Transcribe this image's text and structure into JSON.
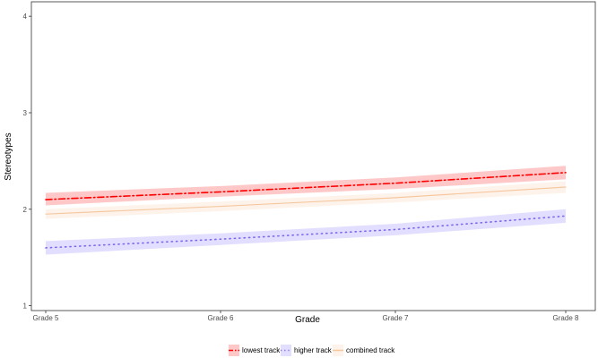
{
  "chart_data": {
    "type": "line",
    "title": "",
    "xlabel": "Grade",
    "ylabel": "Stereotypes",
    "categories": [
      "Grade 5",
      "Grade 6",
      "Grade 7",
      "Grade 8"
    ],
    "ylim": [
      0.95,
      4.15
    ],
    "yticks": [
      1,
      2,
      3,
      4
    ],
    "grid": false,
    "legend_position": "bottom",
    "series": [
      {
        "name": "lowest track",
        "color": "#ff0000",
        "band_color": "#ff9b9b",
        "line_style": "dashdot",
        "values": [
          2.1,
          2.18,
          2.27,
          2.38
        ],
        "lower": [
          2.04,
          2.13,
          2.21,
          2.31
        ],
        "upper": [
          2.17,
          2.24,
          2.33,
          2.45
        ]
      },
      {
        "name": "higher track",
        "color": "#7b68ee",
        "band_color": "#c9c3ff",
        "line_style": "dotted",
        "values": [
          1.6,
          1.69,
          1.79,
          1.93
        ],
        "lower": [
          1.53,
          1.63,
          1.73,
          1.86
        ],
        "upper": [
          1.67,
          1.75,
          1.85,
          2.0
        ]
      },
      {
        "name": "combined track",
        "color": "#f5c8a0",
        "band_color": "#fde9da",
        "line_style": "solid",
        "values": [
          1.95,
          2.03,
          2.12,
          2.23
        ],
        "lower": [
          1.9,
          1.98,
          2.07,
          2.17
        ],
        "upper": [
          2.0,
          2.08,
          2.17,
          2.29
        ]
      }
    ]
  }
}
